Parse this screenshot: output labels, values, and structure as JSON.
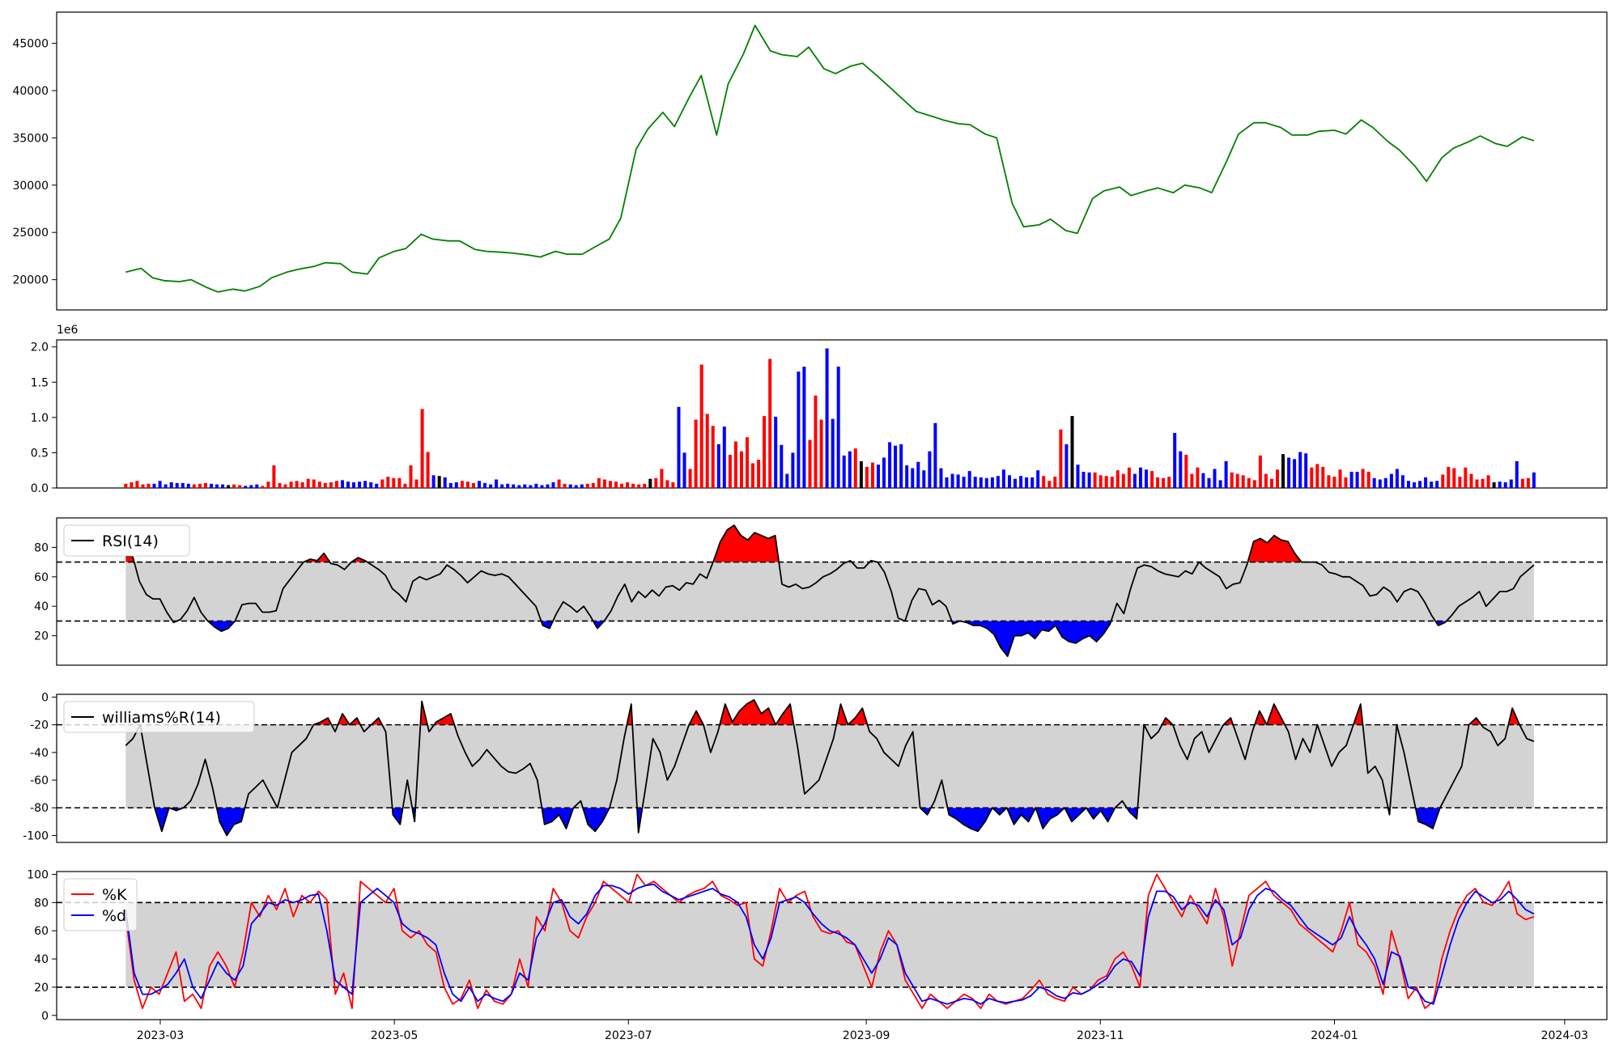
{
  "chart_data": [
    {
      "id": "price",
      "type": "line",
      "yticks": [
        20000,
        25000,
        30000,
        35000,
        40000,
        45000
      ],
      "ylim": [
        16800,
        48300
      ],
      "line_color": "#008000",
      "x_dates": [
        "2023-02-20",
        "2023-02-24",
        "2023-02-27",
        "2023-03-02",
        "2023-03-06",
        "2023-03-09",
        "2023-03-13",
        "2023-03-16",
        "2023-03-20",
        "2023-03-23",
        "2023-03-27",
        "2023-03-30",
        "2023-04-03",
        "2023-04-06",
        "2023-04-10",
        "2023-04-13",
        "2023-04-17",
        "2023-04-20",
        "2023-04-24",
        "2023-04-27",
        "2023-05-01",
        "2023-05-04",
        "2023-05-08",
        "2023-05-11",
        "2023-05-15",
        "2023-05-18",
        "2023-05-22",
        "2023-05-25",
        "2023-05-29",
        "2023-06-01",
        "2023-06-05",
        "2023-06-08",
        "2023-06-12",
        "2023-06-15",
        "2023-06-19",
        "2023-06-22",
        "2023-06-26",
        "2023-06-29",
        "2023-07-03",
        "2023-07-06",
        "2023-07-10",
        "2023-07-13",
        "2023-07-17",
        "2023-07-20",
        "2023-07-24",
        "2023-07-27",
        "2023-07-31",
        "2023-08-03",
        "2023-08-07",
        "2023-08-10",
        "2023-08-14",
        "2023-08-17",
        "2023-08-21",
        "2023-08-24",
        "2023-08-28",
        "2023-08-31",
        "2023-09-04",
        "2023-09-07",
        "2023-09-11",
        "2023-09-14",
        "2023-09-18",
        "2023-09-21",
        "2023-09-25",
        "2023-09-28",
        "2023-10-02",
        "2023-10-05",
        "2023-10-09",
        "2023-10-12",
        "2023-10-16",
        "2023-10-19",
        "2023-10-23",
        "2023-10-26",
        "2023-10-30",
        "2023-11-02",
        "2023-11-06",
        "2023-11-09",
        "2023-11-13",
        "2023-11-16",
        "2023-11-20",
        "2023-11-23",
        "2023-11-27",
        "2023-11-30",
        "2023-12-04",
        "2023-12-07",
        "2023-12-11",
        "2023-12-14",
        "2023-12-18",
        "2023-12-21",
        "2023-12-25",
        "2023-12-28",
        "2024-01-01",
        "2024-01-04",
        "2024-01-08",
        "2024-01-11",
        "2024-01-15",
        "2024-01-18",
        "2024-01-22",
        "2024-01-25",
        "2024-01-29",
        "2024-02-01",
        "2024-02-05",
        "2024-02-08",
        "2024-02-12",
        "2024-02-15",
        "2024-02-19",
        "2024-02-22"
      ],
      "y": [
        20800,
        21200,
        20200,
        19900,
        19800,
        20000,
        19200,
        18700,
        19000,
        18800,
        19300,
        20200,
        20800,
        21100,
        21400,
        21800,
        21700,
        20800,
        20600,
        22300,
        23000,
        23300,
        24800,
        24300,
        24100,
        24100,
        23200,
        23000,
        22900,
        22800,
        22600,
        22400,
        23000,
        22700,
        22700,
        23400,
        24300,
        26500,
        33800,
        35900,
        37700,
        36200,
        39400,
        41600,
        35300,
        40700,
        43900,
        46900,
        44200,
        43800,
        43600,
        44600,
        42300,
        41800,
        42600,
        42900,
        41500,
        40400,
        38900,
        37800,
        37300,
        36900,
        36500,
        36400,
        35400,
        35000,
        28100,
        25600,
        25800,
        26400,
        25200,
        24900,
        28600,
        29400,
        29800,
        28900,
        29400,
        29700,
        29200,
        30000,
        29700,
        29200,
        32600,
        35400,
        36600,
        36600,
        36100,
        35300,
        35300,
        35700,
        35800,
        35400,
        36900,
        36100,
        34600,
        33700,
        32000,
        30400,
        32900,
        33900,
        34600,
        35200,
        34400,
        34100,
        35100,
        34700
      ]
    },
    {
      "id": "volume",
      "type": "bar",
      "offset_text": "1e6",
      "yticks": [
        0.0,
        0.5,
        1.0,
        1.5,
        2.0
      ],
      "ytick_labels": [
        "0.0",
        "0.5",
        "1.0",
        "1.5",
        "2.0"
      ],
      "ylim": [
        0,
        2.1
      ],
      "colors": {
        "up": "#ff0000",
        "down": "#0000ff",
        "flat": "#000000"
      },
      "values": [
        0.06,
        0.08,
        0.1,
        0.05,
        0.06,
        0.06,
        0.1,
        0.05,
        0.08,
        0.07,
        0.07,
        0.06,
        0.05,
        0.06,
        0.07,
        0.06,
        0.05,
        0.05,
        0.04,
        0.05,
        0.04,
        0.03,
        0.04,
        0.05,
        0.03,
        0.09,
        0.32,
        0.07,
        0.05,
        0.09,
        0.1,
        0.08,
        0.13,
        0.12,
        0.09,
        0.07,
        0.08,
        0.1,
        0.11,
        0.09,
        0.08,
        0.09,
        0.1,
        0.08,
        0.06,
        0.12,
        0.16,
        0.14,
        0.14,
        0.06,
        0.32,
        0.12,
        1.12,
        0.51,
        0.18,
        0.17,
        0.15,
        0.07,
        0.08,
        0.1,
        0.09,
        0.07,
        0.1,
        0.07,
        0.05,
        0.12,
        0.05,
        0.06,
        0.05,
        0.04,
        0.05,
        0.04,
        0.06,
        0.04,
        0.05,
        0.08,
        0.12,
        0.06,
        0.05,
        0.04,
        0.05,
        0.06,
        0.07,
        0.14,
        0.12,
        0.1,
        0.09,
        0.06,
        0.08,
        0.06,
        0.05,
        0.06,
        0.13,
        0.14,
        0.27,
        0.11,
        0.08,
        1.15,
        0.5,
        0.27,
        0.97,
        1.75,
        1.05,
        0.88,
        0.62,
        0.87,
        0.47,
        0.66,
        0.52,
        0.72,
        0.35,
        0.4,
        1.02,
        1.83,
        1.01,
        0.61,
        0.2,
        0.5,
        1.65,
        1.72,
        0.68,
        1.31,
        0.97,
        1.98,
        0.98,
        1.72,
        0.46,
        0.52,
        0.56,
        0.38,
        0.3,
        0.36,
        0.33,
        0.43,
        0.65,
        0.6,
        0.62,
        0.32,
        0.28,
        0.37,
        0.25,
        0.52,
        0.92,
        0.28,
        0.15,
        0.2,
        0.19,
        0.16,
        0.24,
        0.16,
        0.15,
        0.14,
        0.15,
        0.17,
        0.26,
        0.18,
        0.13,
        0.17,
        0.15,
        0.15,
        0.25,
        0.17,
        0.1,
        0.16,
        0.83,
        0.62,
        1.02,
        0.33,
        0.23,
        0.22,
        0.22,
        0.18,
        0.17,
        0.16,
        0.25,
        0.2,
        0.29,
        0.2,
        0.29,
        0.26,
        0.24,
        0.15,
        0.14,
        0.16,
        0.78,
        0.52,
        0.47,
        0.2,
        0.29,
        0.21,
        0.14,
        0.27,
        0.11,
        0.38,
        0.22,
        0.2,
        0.18,
        0.14,
        0.11,
        0.46,
        0.2,
        0.13,
        0.26,
        0.48,
        0.43,
        0.41,
        0.51,
        0.49,
        0.29,
        0.34,
        0.3,
        0.18,
        0.16,
        0.26,
        0.15,
        0.23,
        0.23,
        0.27,
        0.23,
        0.14,
        0.12,
        0.14,
        0.2,
        0.27,
        0.18,
        0.1,
        0.08,
        0.1,
        0.15,
        0.09,
        0.1,
        0.19,
        0.3,
        0.28,
        0.16,
        0.29,
        0.2,
        0.12,
        0.13,
        0.18,
        0.08,
        0.09,
        0.08,
        0.12,
        0.38,
        0.13,
        0.14,
        0.22
      ]
    },
    {
      "id": "rsi",
      "type": "line",
      "legend": [
        "RSI(14)"
      ],
      "yticks": [
        20,
        40,
        60,
        80
      ],
      "ylim": [
        0,
        100
      ],
      "thresholds": [
        30,
        70
      ],
      "colors": {
        "line": "#000000",
        "above": "#ff0000",
        "below": "#0000ff",
        "band": "#d3d3d3"
      },
      "values": [
        74,
        74,
        57,
        48,
        45,
        45,
        36,
        29,
        31,
        37,
        46,
        36,
        30,
        26,
        23,
        25,
        30,
        41,
        42,
        42,
        36,
        36,
        37,
        52,
        58,
        64,
        70,
        72,
        71,
        76,
        69,
        68,
        65,
        70,
        73,
        71,
        68,
        65,
        61,
        52,
        48,
        43,
        57,
        60,
        58,
        60,
        62,
        68,
        65,
        61,
        56,
        60,
        64,
        62,
        61,
        62,
        60,
        55,
        50,
        45,
        40,
        27,
        25,
        35,
        43,
        40,
        36,
        40,
        33,
        25,
        30,
        37,
        47,
        55,
        43,
        50,
        46,
        51,
        47,
        53,
        54,
        51,
        56,
        55,
        62,
        59,
        71,
        84,
        92,
        95,
        88,
        85,
        90,
        88,
        86,
        88,
        55,
        53,
        55,
        52,
        53,
        56,
        60,
        62,
        65,
        69,
        71,
        66,
        66,
        71,
        70,
        63,
        50,
        32,
        30,
        44,
        52,
        51,
        41,
        44,
        40,
        28,
        30,
        29,
        27,
        27,
        25,
        21,
        12,
        6,
        20,
        20,
        22,
        18,
        24,
        23,
        27,
        19,
        16,
        15,
        18,
        20,
        16,
        21,
        28,
        42,
        35,
        52,
        66,
        68,
        67,
        64,
        62,
        61,
        60,
        64,
        62,
        70,
        66,
        63,
        60,
        52,
        55,
        56,
        68,
        84,
        86,
        83,
        88,
        85,
        84,
        76,
        70,
        70,
        70,
        68,
        63,
        62,
        60,
        60,
        57,
        54,
        47,
        48,
        53,
        50,
        43,
        50,
        52,
        50,
        43,
        34,
        27,
        29,
        34,
        40,
        43,
        46,
        50,
        40,
        45,
        50,
        50,
        52,
        60,
        64,
        68
      ]
    },
    {
      "id": "williams",
      "type": "line",
      "legend": [
        "williams%R(14)"
      ],
      "yticks": [
        0,
        -20,
        -40,
        -60,
        -80,
        -100
      ],
      "ylim": [
        -105,
        2
      ],
      "thresholds": [
        -20,
        -80
      ],
      "colors": {
        "line": "#000000",
        "above": "#ff0000",
        "below": "#0000ff",
        "band": "#d3d3d3"
      },
      "values": [
        -35,
        -30,
        -20,
        -50,
        -80,
        -97,
        -80,
        -82,
        -80,
        -75,
        -63,
        -45,
        -65,
        -90,
        -100,
        -92,
        -90,
        -70,
        -65,
        -60,
        -70,
        -80,
        -60,
        -40,
        -35,
        -30,
        -20,
        -18,
        -15,
        -25,
        -12,
        -20,
        -15,
        -25,
        -20,
        -15,
        -25,
        -85,
        -92,
        -60,
        -90,
        -3,
        -25,
        -18,
        -15,
        -12,
        -28,
        -40,
        -50,
        -45,
        -38,
        -44,
        -50,
        -54,
        -55,
        -52,
        -48,
        -60,
        -92,
        -90,
        -85,
        -95,
        -80,
        -75,
        -92,
        -97,
        -90,
        -80,
        -60,
        -30,
        -5,
        -98,
        -65,
        -30,
        -40,
        -60,
        -50,
        -35,
        -20,
        -10,
        -20,
        -40,
        -25,
        -5,
        -18,
        -10,
        -5,
        -2,
        -12,
        -8,
        -20,
        -12,
        -5,
        -35,
        -70,
        -65,
        -60,
        -45,
        -30,
        -5,
        -20,
        -15,
        -8,
        -25,
        -30,
        -40,
        -45,
        -50,
        -35,
        -25,
        -80,
        -85,
        -75,
        -60,
        -85,
        -88,
        -92,
        -95,
        -97,
        -90,
        -80,
        -85,
        -80,
        -92,
        -85,
        -90,
        -80,
        -95,
        -88,
        -85,
        -80,
        -90,
        -85,
        -80,
        -88,
        -82,
        -90,
        -80,
        -75,
        -83,
        -88,
        -20,
        -30,
        -25,
        -15,
        -20,
        -35,
        -45,
        -30,
        -25,
        -40,
        -30,
        -20,
        -15,
        -30,
        -45,
        -25,
        -10,
        -20,
        -5,
        -15,
        -25,
        -45,
        -30,
        -40,
        -20,
        -35,
        -50,
        -40,
        -35,
        -20,
        -5,
        -55,
        -50,
        -60,
        -85,
        -20,
        -40,
        -65,
        -90,
        -92,
        -95,
        -80,
        -70,
        -60,
        -50,
        -20,
        -15,
        -22,
        -25,
        -35,
        -30,
        -8,
        -20,
        -30,
        -32
      ]
    },
    {
      "id": "stoch",
      "type": "line",
      "legend": [
        "%K",
        "%d"
      ],
      "yticks": [
        0,
        20,
        40,
        60,
        80,
        100
      ],
      "ylim": [
        -3,
        102
      ],
      "thresholds": [
        20,
        80
      ],
      "colors": {
        "k": "#ff0000",
        "d": "#0000ff",
        "band": "#d3d3d3"
      },
      "k": [
        70,
        25,
        5,
        20,
        15,
        30,
        45,
        10,
        15,
        5,
        35,
        45,
        35,
        20,
        45,
        80,
        70,
        85,
        75,
        90,
        70,
        85,
        80,
        88,
        82,
        15,
        30,
        5,
        95,
        90,
        85,
        80,
        90,
        60,
        55,
        60,
        50,
        45,
        20,
        8,
        12,
        25,
        5,
        18,
        10,
        8,
        15,
        40,
        20,
        70,
        60,
        90,
        80,
        60,
        55,
        70,
        80,
        95,
        90,
        85,
        80,
        100,
        92,
        95,
        90,
        85,
        80,
        85,
        88,
        90,
        95,
        85,
        82,
        78,
        80,
        40,
        35,
        60,
        90,
        80,
        85,
        88,
        70,
        60,
        58,
        60,
        52,
        50,
        35,
        20,
        45,
        60,
        50,
        25,
        15,
        5,
        15,
        10,
        5,
        10,
        15,
        12,
        5,
        15,
        10,
        8,
        10,
        12,
        18,
        25,
        15,
        12,
        10,
        20,
        15,
        18,
        25,
        28,
        40,
        45,
        35,
        20,
        85,
        100,
        90,
        80,
        70,
        85,
        75,
        65,
        90,
        70,
        35,
        60,
        85,
        90,
        95,
        85,
        80,
        75,
        65,
        60,
        55,
        50,
        45,
        60,
        80,
        50,
        45,
        35,
        15,
        60,
        40,
        12,
        20,
        5,
        10,
        40,
        60,
        75,
        85,
        90,
        80,
        78,
        85,
        95,
        72,
        68,
        70
      ],
      "d": [
        75,
        30,
        15,
        15,
        18,
        22,
        30,
        40,
        20,
        12,
        25,
        38,
        30,
        25,
        35,
        65,
        72,
        80,
        78,
        82,
        80,
        82,
        85,
        86,
        60,
        25,
        20,
        15,
        80,
        85,
        90,
        85,
        80,
        65,
        60,
        58,
        55,
        50,
        30,
        15,
        10,
        20,
        10,
        15,
        12,
        10,
        15,
        30,
        25,
        55,
        65,
        80,
        82,
        70,
        65,
        72,
        85,
        92,
        92,
        90,
        86,
        90,
        92,
        93,
        88,
        85,
        82,
        84,
        86,
        88,
        90,
        86,
        84,
        80,
        70,
        50,
        40,
        55,
        80,
        82,
        84,
        80,
        72,
        65,
        60,
        58,
        55,
        50,
        40,
        30,
        40,
        55,
        50,
        30,
        20,
        10,
        12,
        10,
        8,
        10,
        12,
        11,
        8,
        12,
        10,
        9,
        10,
        11,
        14,
        20,
        18,
        14,
        12,
        16,
        15,
        18,
        22,
        26,
        35,
        40,
        38,
        28,
        70,
        88,
        88,
        84,
        75,
        80,
        78,
        70,
        82,
        75,
        50,
        55,
        75,
        85,
        90,
        88,
        82,
        78,
        70,
        62,
        58,
        54,
        50,
        55,
        70,
        58,
        50,
        40,
        22,
        45,
        42,
        20,
        18,
        10,
        8,
        28,
        50,
        68,
        80,
        88,
        84,
        80,
        82,
        88,
        82,
        75,
        72
      ]
    }
  ],
  "xaxis": {
    "tick_labels": [
      "2023-03",
      "2023-05",
      "2023-07",
      "2023-09",
      "2023-11",
      "2024-01",
      "2024-03"
    ],
    "tick_dates": [
      "2023-03-01",
      "2023-05-01",
      "2023-07-01",
      "2023-09-01",
      "2023-11-01",
      "2024-01-01",
      "2024-03-01"
    ],
    "start_date": "2023-02-20",
    "end_date": "2024-02-22",
    "range_dates": [
      "2023-02-02",
      "2024-03-12"
    ]
  }
}
